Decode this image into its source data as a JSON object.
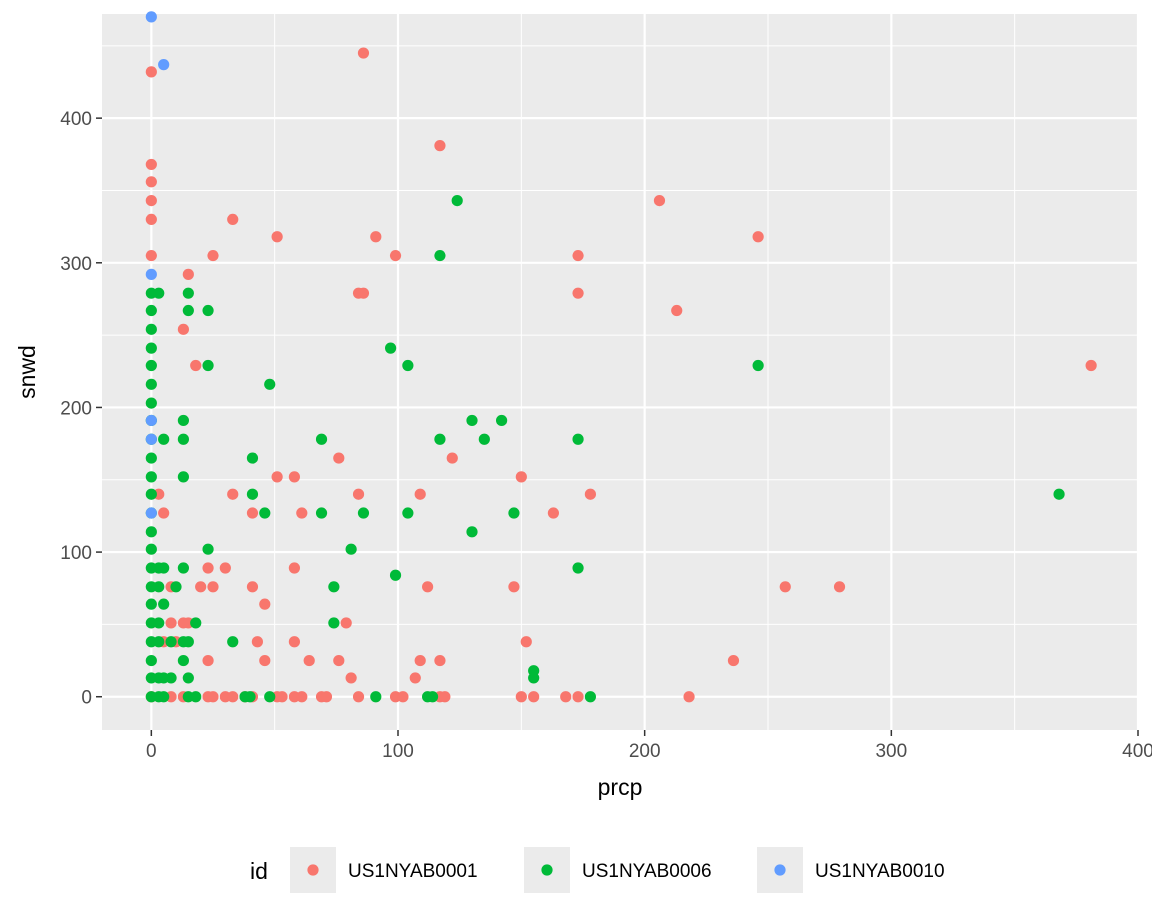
{
  "chart_data": {
    "type": "scatter",
    "xlabel": "prcp",
    "ylabel": "snwd",
    "xlim": [
      -20,
      400
    ],
    "ylim": [
      -23,
      472
    ],
    "x_ticks": [
      0,
      100,
      200,
      300,
      400
    ],
    "x_tick_labels": [
      "0",
      "100",
      "200",
      "300",
      "400"
    ],
    "y_ticks": [
      0,
      100,
      200,
      300,
      400
    ],
    "y_tick_labels": [
      "0",
      "100",
      "200",
      "300",
      "400"
    ],
    "grid": true,
    "legend_position": "bottom",
    "legend_title": "id",
    "series": [
      {
        "name": "US1NYAB0001",
        "color": "#F8766D",
        "points": [
          [
            0,
            432
          ],
          [
            0,
            368
          ],
          [
            0,
            356
          ],
          [
            0,
            343
          ],
          [
            0,
            330
          ],
          [
            0,
            305
          ],
          [
            86,
            445
          ],
          [
            117,
            381
          ],
          [
            206,
            343
          ],
          [
            33,
            330
          ],
          [
            91,
            318
          ],
          [
            246,
            318
          ],
          [
            51,
            318
          ],
          [
            99,
            305
          ],
          [
            173,
            305
          ],
          [
            25,
            305
          ],
          [
            15,
            292
          ],
          [
            84,
            279
          ],
          [
            86,
            279
          ],
          [
            173,
            279
          ],
          [
            213,
            267
          ],
          [
            13,
            254
          ],
          [
            18,
            229
          ],
          [
            381,
            229
          ],
          [
            76,
            165
          ],
          [
            122,
            165
          ],
          [
            51,
            152
          ],
          [
            58,
            152
          ],
          [
            150,
            152
          ],
          [
            3,
            140
          ],
          [
            33,
            140
          ],
          [
            84,
            140
          ],
          [
            109,
            140
          ],
          [
            178,
            140
          ],
          [
            5,
            127
          ],
          [
            41,
            127
          ],
          [
            61,
            127
          ],
          [
            163,
            127
          ],
          [
            23,
            89
          ],
          [
            30,
            89
          ],
          [
            58,
            89
          ],
          [
            8,
            76
          ],
          [
            20,
            76
          ],
          [
            25,
            76
          ],
          [
            41,
            76
          ],
          [
            112,
            76
          ],
          [
            147,
            76
          ],
          [
            257,
            76
          ],
          [
            279,
            76
          ],
          [
            46,
            64
          ],
          [
            8,
            51
          ],
          [
            13,
            51
          ],
          [
            15,
            51
          ],
          [
            79,
            51
          ],
          [
            5,
            38
          ],
          [
            10,
            38
          ],
          [
            43,
            38
          ],
          [
            58,
            38
          ],
          [
            152,
            38
          ],
          [
            23,
            25
          ],
          [
            46,
            25
          ],
          [
            64,
            25
          ],
          [
            76,
            25
          ],
          [
            109,
            25
          ],
          [
            117,
            25
          ],
          [
            236,
            25
          ],
          [
            81,
            13
          ],
          [
            107,
            13
          ],
          [
            0,
            0
          ],
          [
            8,
            0
          ],
          [
            13,
            0
          ],
          [
            23,
            0
          ],
          [
            25,
            0
          ],
          [
            30,
            0
          ],
          [
            33,
            0
          ],
          [
            38,
            0
          ],
          [
            41,
            0
          ],
          [
            51,
            0
          ],
          [
            53,
            0
          ],
          [
            58,
            0
          ],
          [
            61,
            0
          ],
          [
            69,
            0
          ],
          [
            71,
            0
          ],
          [
            84,
            0
          ],
          [
            99,
            0
          ],
          [
            102,
            0
          ],
          [
            117,
            0
          ],
          [
            119,
            0
          ],
          [
            150,
            0
          ],
          [
            155,
            0
          ],
          [
            168,
            0
          ],
          [
            173,
            0
          ],
          [
            218,
            0
          ]
        ]
      },
      {
        "name": "US1NYAB0006",
        "color": "#00BA38",
        "points": [
          [
            0,
            279
          ],
          [
            0,
            267
          ],
          [
            0,
            254
          ],
          [
            0,
            241
          ],
          [
            0,
            229
          ],
          [
            0,
            216
          ],
          [
            0,
            203
          ],
          [
            0,
            191
          ],
          [
            0,
            178
          ],
          [
            0,
            165
          ],
          [
            0,
            152
          ],
          [
            0,
            140
          ],
          [
            0,
            127
          ],
          [
            0,
            114
          ],
          [
            0,
            102
          ],
          [
            0,
            89
          ],
          [
            0,
            76
          ],
          [
            0,
            64
          ],
          [
            0,
            51
          ],
          [
            0,
            38
          ],
          [
            0,
            25
          ],
          [
            0,
            13
          ],
          [
            0,
            0
          ],
          [
            3,
            279
          ],
          [
            15,
            279
          ],
          [
            15,
            267
          ],
          [
            23,
            267
          ],
          [
            124,
            343
          ],
          [
            117,
            305
          ],
          [
            97,
            241
          ],
          [
            23,
            229
          ],
          [
            104,
            229
          ],
          [
            246,
            229
          ],
          [
            48,
            216
          ],
          [
            13,
            191
          ],
          [
            130,
            191
          ],
          [
            142,
            191
          ],
          [
            5,
            178
          ],
          [
            13,
            178
          ],
          [
            69,
            178
          ],
          [
            117,
            178
          ],
          [
            135,
            178
          ],
          [
            173,
            178
          ],
          [
            41,
            165
          ],
          [
            13,
            152
          ],
          [
            41,
            140
          ],
          [
            368,
            140
          ],
          [
            46,
            127
          ],
          [
            69,
            127
          ],
          [
            86,
            127
          ],
          [
            104,
            127
          ],
          [
            147,
            127
          ],
          [
            130,
            114
          ],
          [
            23,
            102
          ],
          [
            81,
            102
          ],
          [
            3,
            89
          ],
          [
            5,
            89
          ],
          [
            13,
            89
          ],
          [
            173,
            89
          ],
          [
            99,
            84
          ],
          [
            3,
            76
          ],
          [
            10,
            76
          ],
          [
            74,
            76
          ],
          [
            5,
            64
          ],
          [
            3,
            51
          ],
          [
            18,
            51
          ],
          [
            74,
            51
          ],
          [
            3,
            38
          ],
          [
            8,
            38
          ],
          [
            13,
            38
          ],
          [
            15,
            38
          ],
          [
            33,
            38
          ],
          [
            13,
            25
          ],
          [
            155,
            18
          ],
          [
            3,
            13
          ],
          [
            5,
            13
          ],
          [
            8,
            13
          ],
          [
            15,
            13
          ],
          [
            155,
            13
          ],
          [
            3,
            0
          ],
          [
            5,
            0
          ],
          [
            15,
            0
          ],
          [
            18,
            0
          ],
          [
            38,
            0
          ],
          [
            40,
            0
          ],
          [
            48,
            0
          ],
          [
            91,
            0
          ],
          [
            112,
            0
          ],
          [
            114,
            0
          ],
          [
            178,
            0
          ]
        ]
      },
      {
        "name": "US1NYAB0010",
        "color": "#619CFF",
        "points": [
          [
            0,
            470
          ],
          [
            5,
            437
          ],
          [
            0,
            292
          ],
          [
            0,
            191
          ],
          [
            0,
            178
          ],
          [
            0,
            127
          ]
        ]
      }
    ]
  }
}
